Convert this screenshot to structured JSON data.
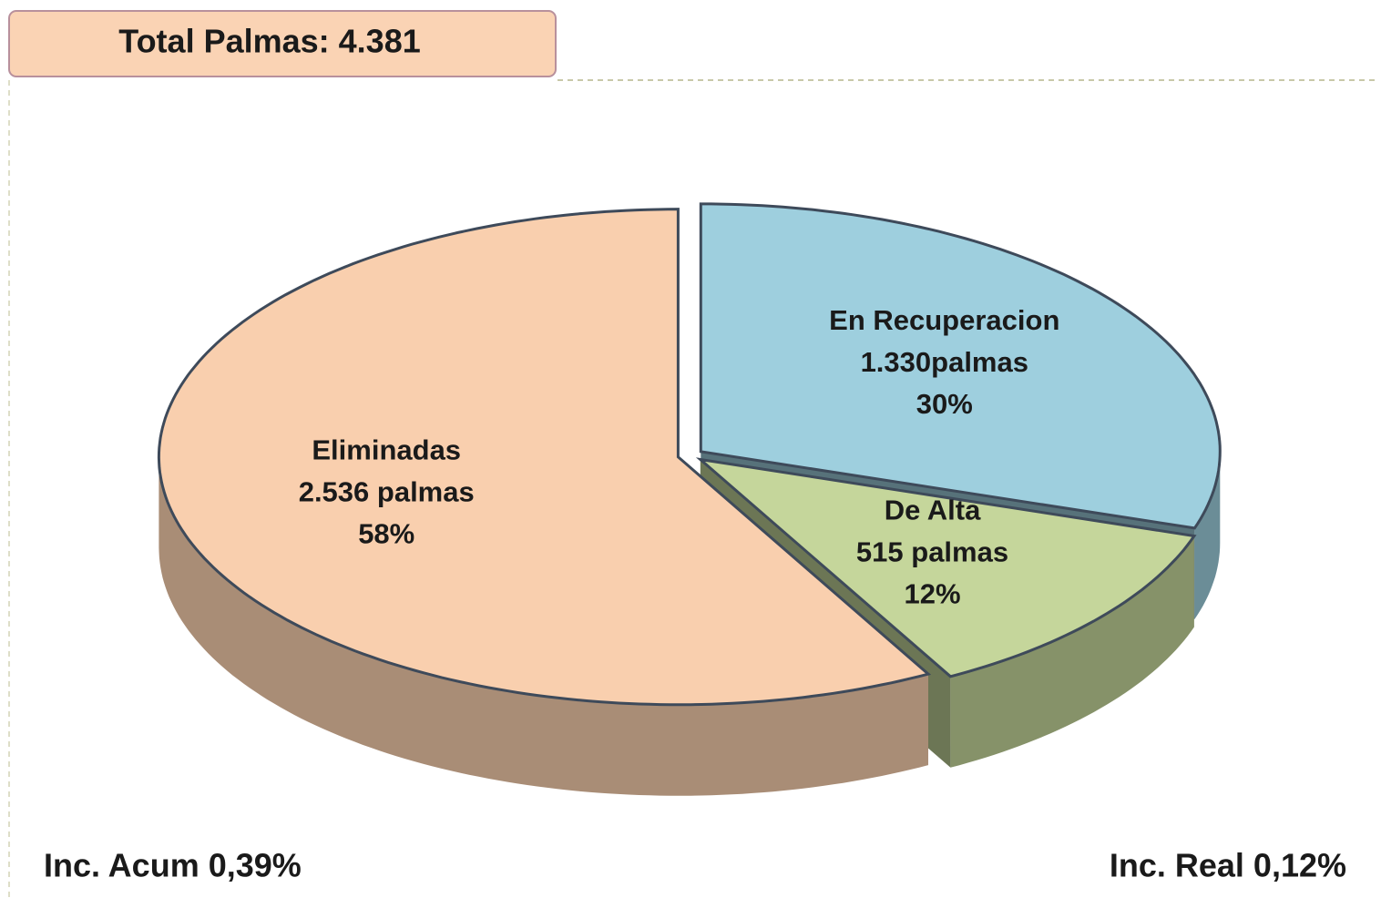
{
  "chart_data": {
    "type": "pie3d",
    "title": "Total Palmas: 4.381",
    "categories": [
      "En Recuperacion",
      "De  Alta",
      "Eliminadas"
    ],
    "count_labels": [
      "1.330palmas",
      "515 palmas",
      "2.536 palmas"
    ],
    "values": [
      30,
      12,
      58
    ],
    "value_labels": [
      "30%",
      "12%",
      "58%"
    ],
    "colors": [
      "#9ecfde",
      "#c5d69b",
      "#f9cfae"
    ],
    "annotations": [
      "Inc. Acum 0,39%",
      "Inc. Real 0,12%"
    ]
  }
}
